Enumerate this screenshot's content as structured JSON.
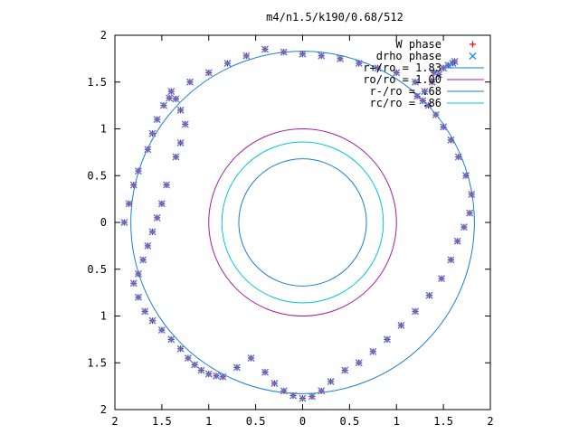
{
  "chart_data": {
    "type": "scatter",
    "title": "m4/n1.5/k190/0.68/512",
    "xlabel": "",
    "ylabel": "",
    "xlim": [
      -2,
      2
    ],
    "ylim": [
      -2,
      2
    ],
    "x_tick_values": [
      -2,
      -1.5,
      -1,
      -0.5,
      0,
      0.5,
      1,
      1.5,
      2
    ],
    "x_tick_labels": [
      "2",
      "1.5",
      "1",
      "0.5",
      "0",
      "0.5",
      "1",
      "1.5",
      "2"
    ],
    "y_tick_values": [
      2,
      1.5,
      1,
      0.5,
      0,
      -0.5,
      -1,
      -1.5,
      -2
    ],
    "y_tick_labels": [
      "2",
      "1.5",
      "1",
      "0.5",
      "0",
      "0.5",
      "1",
      "1.5",
      "2"
    ],
    "grid": false,
    "legend_position": "top-right",
    "series": [
      {
        "name": "W phase",
        "kind": "points",
        "marker": "plus",
        "color": "#ff0000",
        "x": [
          -1.9,
          -1.85,
          -1.8,
          -1.75,
          -1.65,
          -1.6,
          -1.55,
          -1.48,
          -1.42,
          -1.35,
          -1.3,
          -1.25,
          -1.3,
          -1.35,
          -1.45,
          -1.5,
          -1.55,
          -1.6,
          -1.65,
          -1.7,
          -1.75,
          -1.8,
          -1.75,
          -1.68,
          -1.6,
          -1.5,
          -1.4,
          -1.3,
          -1.22,
          -1.15,
          -1.08,
          -1.0,
          -0.92,
          -0.85,
          -0.7,
          -0.55,
          -0.4,
          -0.3,
          -0.2,
          -0.1,
          0.0,
          0.1,
          0.2,
          0.3,
          0.45,
          0.6,
          0.75,
          0.9,
          1.05,
          1.2,
          1.35,
          1.48,
          1.58,
          1.65,
          1.72,
          1.78,
          1.8,
          1.74,
          1.66,
          1.58,
          1.5,
          1.42,
          1.34,
          1.28,
          1.22,
          1.3,
          1.38,
          1.45,
          1.5,
          1.55,
          1.6,
          1.62,
          1.4,
          1.2,
          1.0,
          0.8,
          0.6,
          0.4,
          0.2,
          0.0,
          -0.2,
          -0.4,
          -0.6,
          -0.8,
          -1.0,
          -1.2,
          -1.4
        ],
        "y": [
          0.0,
          0.2,
          0.4,
          0.55,
          0.78,
          0.95,
          1.1,
          1.25,
          1.33,
          1.32,
          1.2,
          1.05,
          0.85,
          0.7,
          0.4,
          0.2,
          0.05,
          -0.1,
          -0.25,
          -0.4,
          -0.55,
          -0.65,
          -0.8,
          -0.95,
          -1.05,
          -1.15,
          -1.25,
          -1.35,
          -1.45,
          -1.52,
          -1.58,
          -1.62,
          -1.64,
          -1.65,
          -1.55,
          -1.45,
          -1.6,
          -1.72,
          -1.8,
          -1.85,
          -1.88,
          -1.86,
          -1.8,
          -1.7,
          -1.58,
          -1.5,
          -1.38,
          -1.25,
          -1.1,
          -0.95,
          -0.78,
          -0.6,
          -0.4,
          -0.2,
          -0.05,
          0.1,
          0.3,
          0.5,
          0.7,
          0.88,
          1.02,
          1.15,
          1.25,
          1.3,
          1.35,
          1.4,
          1.5,
          1.58,
          1.65,
          1.68,
          1.7,
          1.72,
          1.6,
          1.5,
          1.6,
          1.65,
          1.7,
          1.75,
          1.78,
          1.8,
          1.82,
          1.85,
          1.78,
          1.7,
          1.6,
          1.5,
          1.4
        ]
      },
      {
        "name": "drho phase",
        "kind": "points",
        "marker": "cross",
        "color": "#2a86ff",
        "x": [
          -1.9,
          -1.85,
          -1.8,
          -1.75,
          -1.65,
          -1.6,
          -1.55,
          -1.48,
          -1.42,
          -1.35,
          -1.3,
          -1.25,
          -1.3,
          -1.35,
          -1.45,
          -1.5,
          -1.55,
          -1.6,
          -1.65,
          -1.7,
          -1.75,
          -1.8,
          -1.75,
          -1.68,
          -1.6,
          -1.5,
          -1.4,
          -1.3,
          -1.22,
          -1.15,
          -1.08,
          -1.0,
          -0.92,
          -0.85,
          -0.7,
          -0.55,
          -0.4,
          -0.3,
          -0.2,
          -0.1,
          0.0,
          0.1,
          0.2,
          0.3,
          0.45,
          0.6,
          0.75,
          0.9,
          1.05,
          1.2,
          1.35,
          1.48,
          1.58,
          1.65,
          1.72,
          1.78,
          1.8,
          1.74,
          1.66,
          1.58,
          1.5,
          1.42,
          1.34,
          1.28,
          1.22,
          1.3,
          1.38,
          1.45,
          1.5,
          1.55,
          1.6,
          1.62,
          1.4,
          1.2,
          1.0,
          0.8,
          0.6,
          0.4,
          0.2,
          0.0,
          -0.2,
          -0.4,
          -0.6,
          -0.8,
          -1.0,
          -1.2,
          -1.4
        ],
        "y": [
          0.0,
          0.2,
          0.4,
          0.55,
          0.78,
          0.95,
          1.1,
          1.25,
          1.33,
          1.32,
          1.2,
          1.05,
          0.85,
          0.7,
          0.4,
          0.2,
          0.05,
          -0.1,
          -0.25,
          -0.4,
          -0.55,
          -0.65,
          -0.8,
          -0.95,
          -1.05,
          -1.15,
          -1.25,
          -1.35,
          -1.45,
          -1.52,
          -1.58,
          -1.62,
          -1.64,
          -1.65,
          -1.55,
          -1.45,
          -1.6,
          -1.72,
          -1.8,
          -1.85,
          -1.88,
          -1.86,
          -1.8,
          -1.7,
          -1.58,
          -1.5,
          -1.38,
          -1.25,
          -1.1,
          -0.95,
          -0.78,
          -0.6,
          -0.4,
          -0.2,
          -0.05,
          0.1,
          0.3,
          0.5,
          0.7,
          0.88,
          1.02,
          1.15,
          1.25,
          1.3,
          1.35,
          1.4,
          1.5,
          1.58,
          1.65,
          1.68,
          1.7,
          1.72,
          1.6,
          1.5,
          1.6,
          1.65,
          1.7,
          1.75,
          1.78,
          1.8,
          1.82,
          1.85,
          1.78,
          1.7,
          1.6,
          1.5,
          1.4
        ]
      },
      {
        "name": "r+/ro = 1.83",
        "kind": "circle",
        "radius": 1.83,
        "color": "#1a7fd0"
      },
      {
        "name": "ro/ro = 1.00",
        "kind": "circle",
        "radius": 1.0,
        "color": "#a020a0"
      },
      {
        "name": "r-/ro = .68",
        "kind": "circle",
        "radius": 0.68,
        "color": "#1a7fd0"
      },
      {
        "name": "rc/ro = .86",
        "kind": "circle",
        "radius": 0.86,
        "color": "#00c8d0"
      }
    ]
  }
}
